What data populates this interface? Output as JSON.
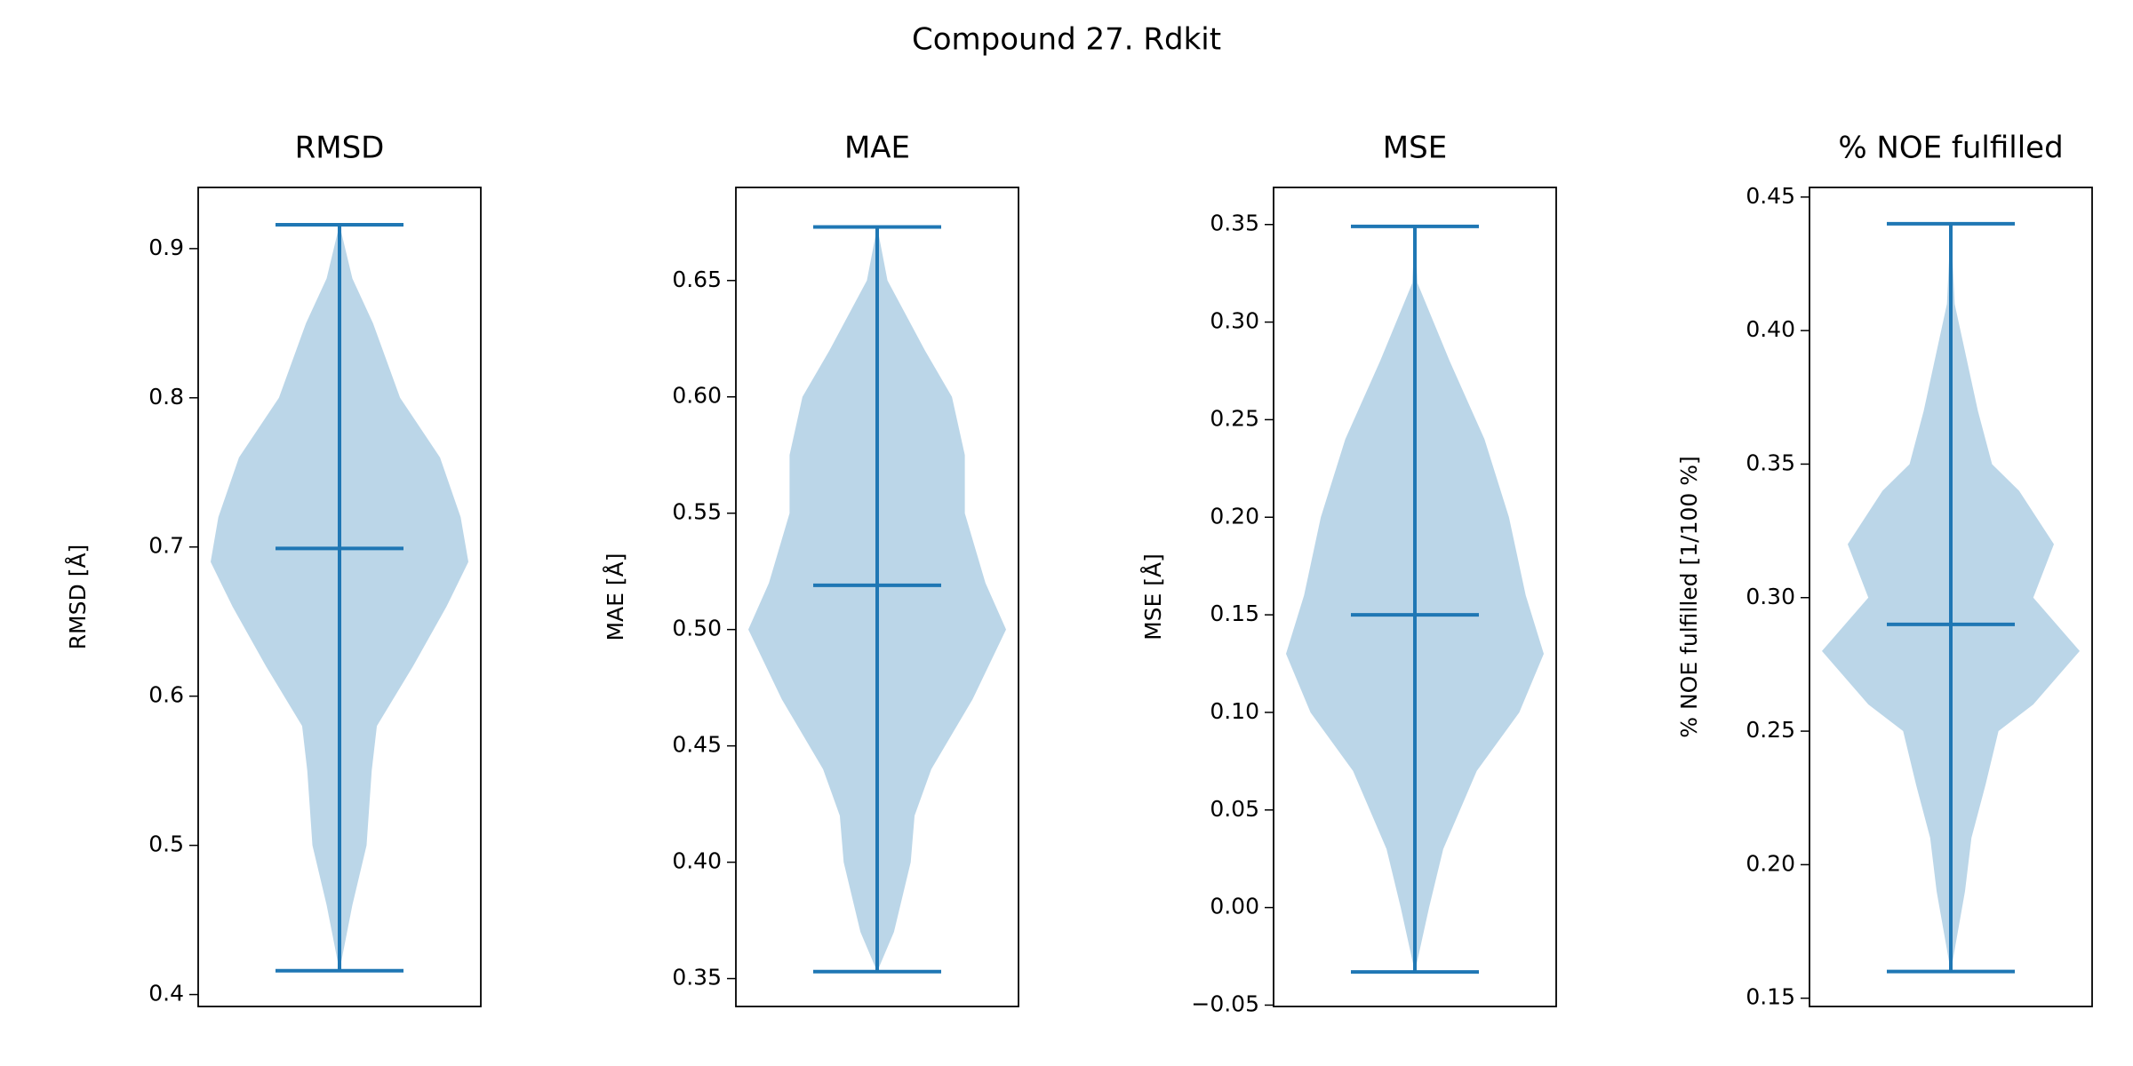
{
  "title": "Compound 27. Rdkit",
  "chart_data": [
    {
      "type": "violin",
      "title": "RMSD",
      "ylabel": "RMSD [Å]",
      "color": "#1f77b4",
      "ylim": [
        0.392,
        0.941
      ],
      "yticks": [
        0.4,
        0.5,
        0.6,
        0.7,
        0.8,
        0.9
      ],
      "min": 0.416,
      "max": 0.916,
      "median": 0.699,
      "kde": {
        "y": [
          0.916,
          0.88,
          0.85,
          0.8,
          0.76,
          0.72,
          0.69,
          0.66,
          0.62,
          0.58,
          0.55,
          0.5,
          0.46,
          0.416
        ],
        "width": [
          0,
          0.1,
          0.26,
          0.47,
          0.78,
          0.94,
          1,
          0.83,
          0.57,
          0.29,
          0.25,
          0.21,
          0.1,
          0
        ]
      }
    },
    {
      "type": "violin",
      "title": "MAE",
      "ylabel": "MAE [Å]",
      "color": "#1f77b4",
      "ylim": [
        0.338,
        0.69
      ],
      "yticks": [
        0.35,
        {
          "value": 0.4,
          "label": "0.40"
        },
        0.45,
        {
          "value": 0.5,
          "label": "0.50"
        },
        0.55,
        {
          "value": 0.6,
          "label": "0.60"
        },
        0.65
      ],
      "min": 0.353,
      "max": 0.673,
      "median": 0.519,
      "kde": {
        "y": [
          0.673,
          0.65,
          0.62,
          0.6,
          0.575,
          0.55,
          0.52,
          0.5,
          0.47,
          0.44,
          0.42,
          0.4,
          0.37,
          0.353
        ],
        "width": [
          0,
          0.08,
          0.37,
          0.58,
          0.68,
          0.68,
          0.84,
          1,
          0.74,
          0.42,
          0.29,
          0.26,
          0.13,
          0
        ]
      }
    },
    {
      "type": "violin",
      "title": "MSE",
      "ylabel": "MSE [Å]",
      "color": "#1f77b4",
      "ylim": [
        -0.0507,
        0.369
      ],
      "yticks": [
        {
          "value": -0.05,
          "label": "−0.05"
        },
        {
          "value": 0,
          "label": "0.00"
        },
        0.05,
        {
          "value": 0.1,
          "label": "0.10"
        },
        0.15,
        {
          "value": 0.2,
          "label": "0.20"
        },
        0.25,
        {
          "value": 0.3,
          "label": "0.30"
        },
        0.35
      ],
      "min": -0.033,
      "max": 0.349,
      "median": 0.15,
      "kde": {
        "y": [
          0.349,
          0.32,
          0.28,
          0.24,
          0.2,
          0.16,
          0.13,
          0.1,
          0.07,
          0.03,
          0,
          -0.033
        ],
        "width": [
          0,
          0.02,
          0.27,
          0.54,
          0.73,
          0.86,
          1,
          0.81,
          0.48,
          0.22,
          0.11,
          0
        ]
      }
    },
    {
      "type": "violin",
      "title": "% NOE fulfilled",
      "ylabel": "% NOE fulfilled [1/100 %]",
      "color": "#1f77b4",
      "ylim": [
        0.1469,
        0.4536
      ],
      "yticks": [
        0.15,
        {
          "value": 0.2,
          "label": "0.20"
        },
        0.25,
        {
          "value": 0.3,
          "label": "0.30"
        },
        0.35,
        {
          "value": 0.4,
          "label": "0.40"
        },
        0.45
      ],
      "min": 0.16,
      "max": 0.44,
      "median": 0.29,
      "kde": {
        "y": [
          0.44,
          0.41,
          0.37,
          0.35,
          0.34,
          0.32,
          0.3,
          0.28,
          0.26,
          0.25,
          0.23,
          0.21,
          0.19,
          0.16
        ],
        "width": [
          0,
          0.03,
          0.21,
          0.32,
          0.53,
          0.8,
          0.64,
          1,
          0.64,
          0.37,
          0.27,
          0.16,
          0.11,
          0
        ]
      }
    }
  ]
}
